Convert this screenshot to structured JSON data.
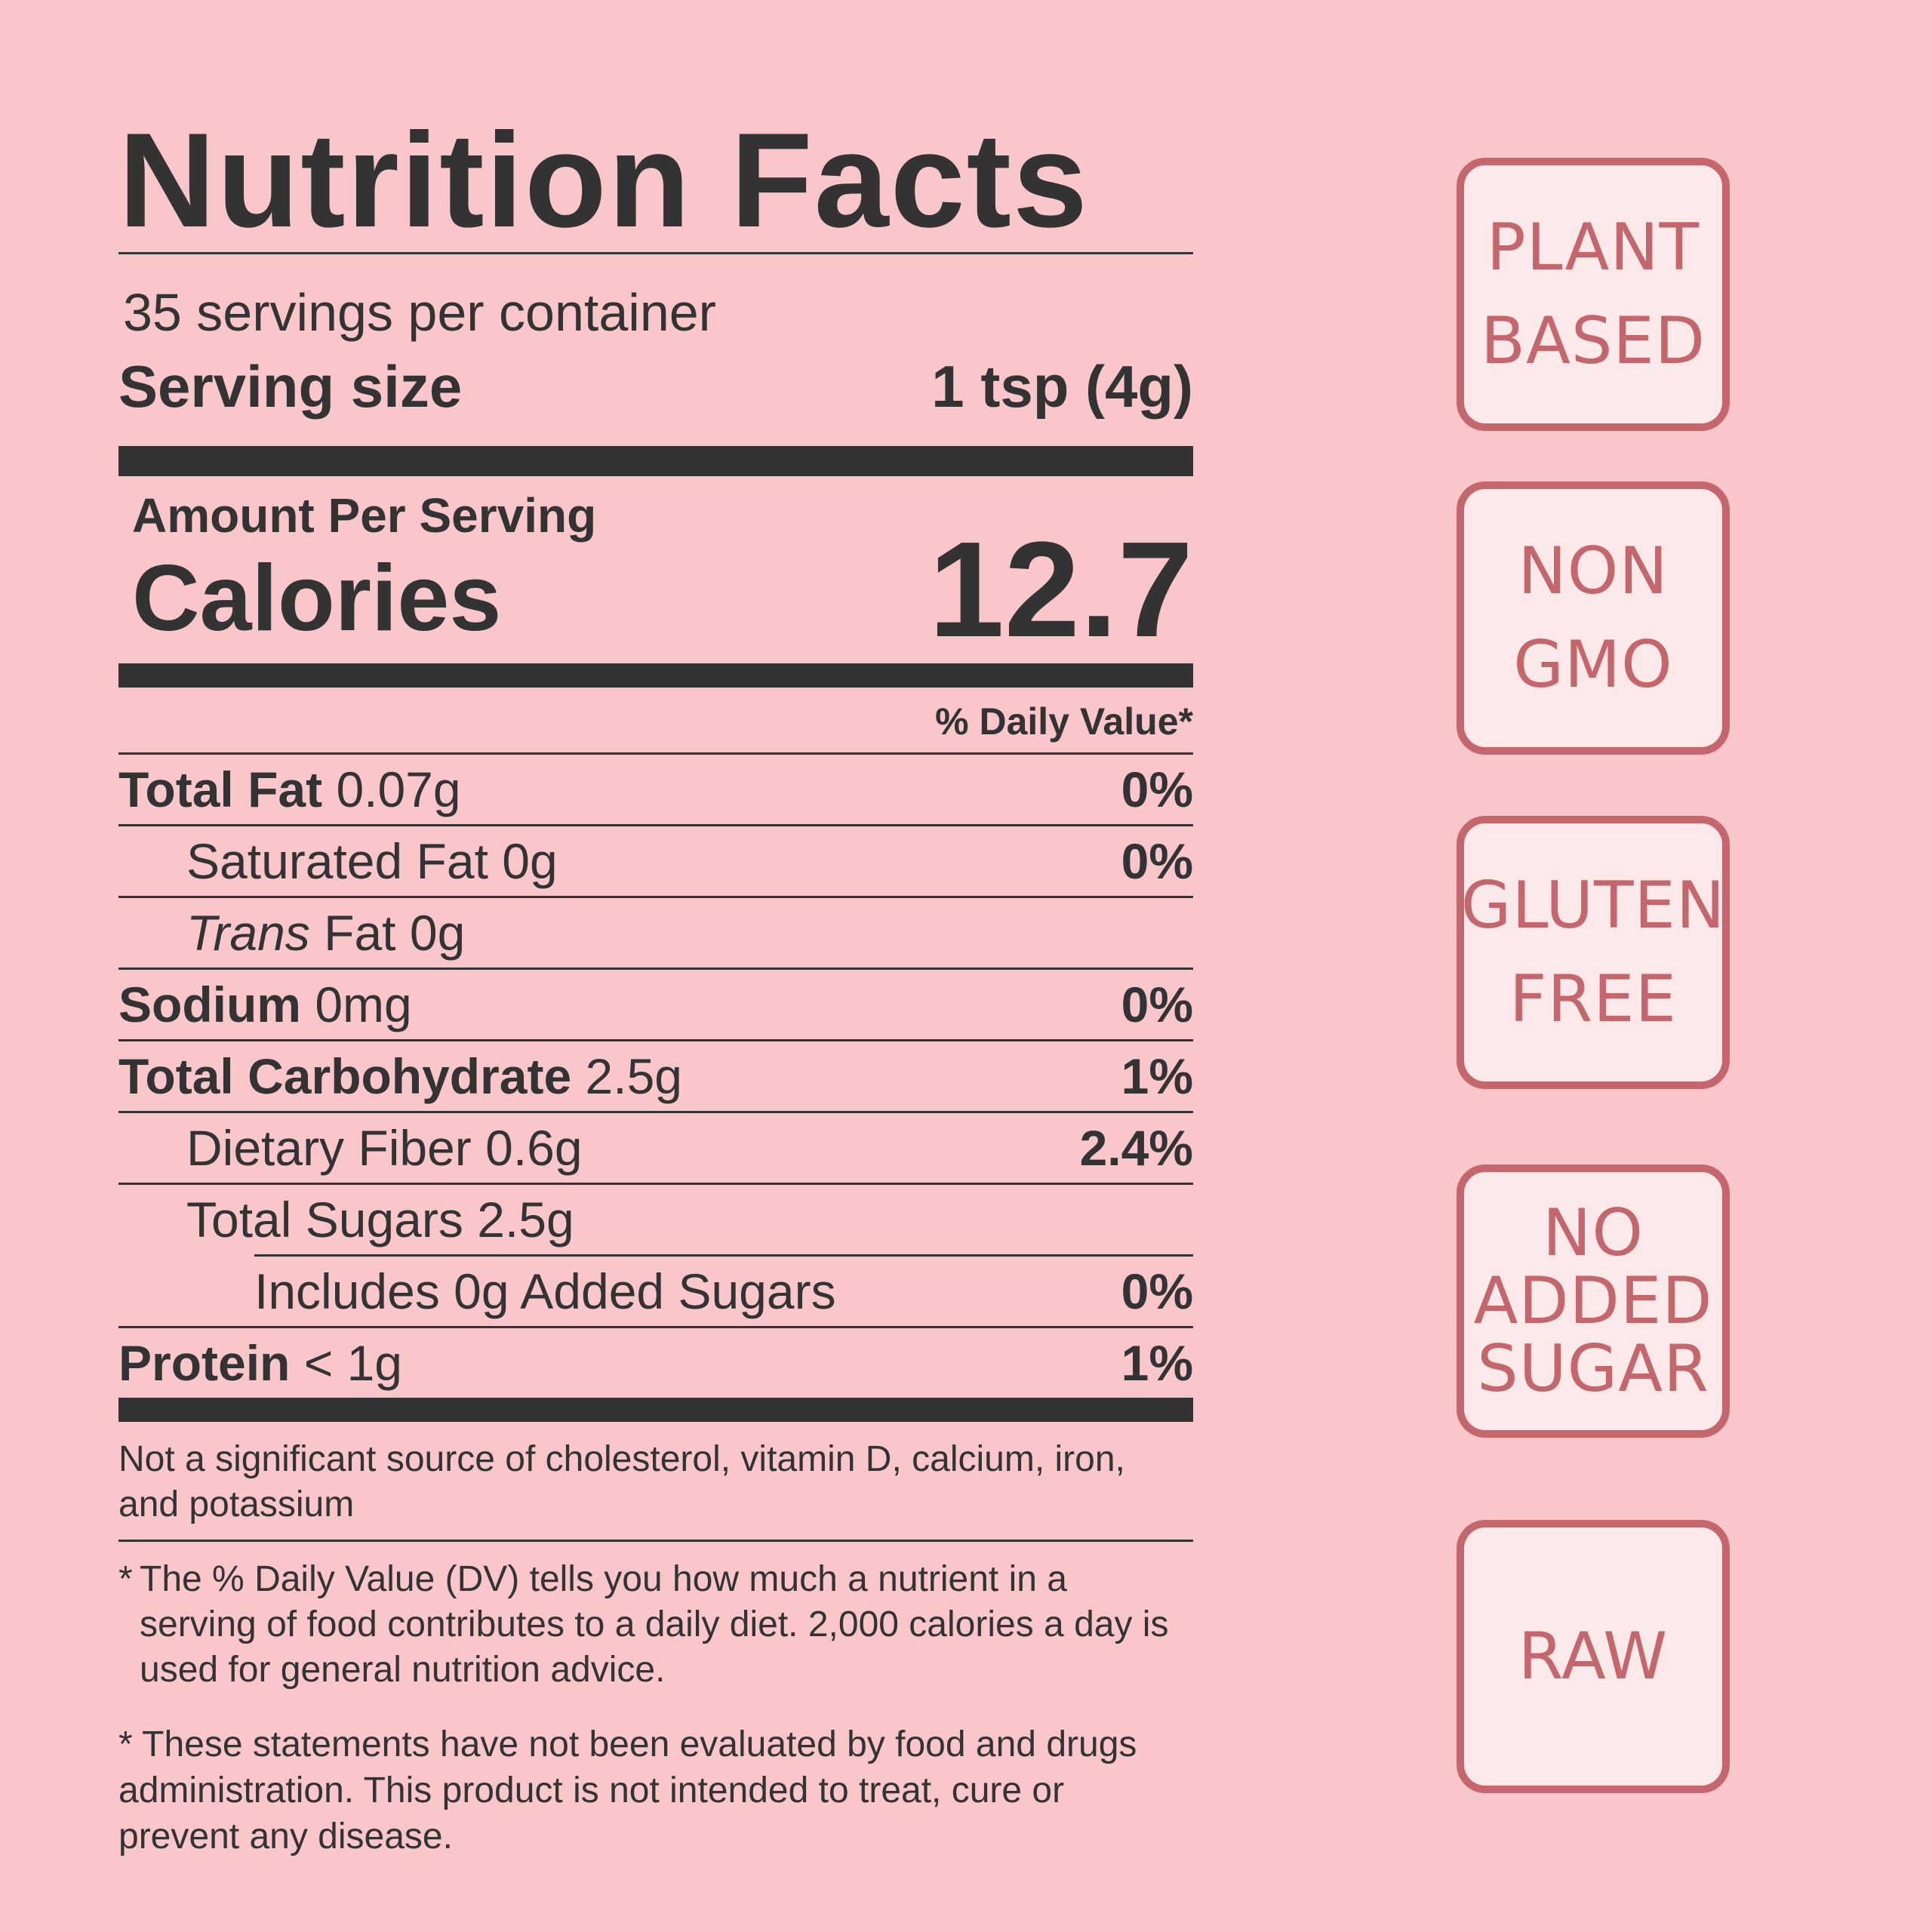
{
  "label": {
    "title": "Nutrition Facts",
    "servings_per_container": "35 servings per container",
    "serving_size_label": "Serving size",
    "serving_size_value": "1 tsp (4g)",
    "amount_per_serving": "Amount Per Serving",
    "calories_label": "Calories",
    "calories_value": "12.7",
    "daily_value_header": "% Daily Value*",
    "rows": [
      {
        "name": "Total Fat",
        "amount": "0.07g",
        "dv": "0%"
      },
      {
        "name": "Saturated Fat",
        "amount": "0g",
        "dv": "0%"
      },
      {
        "name": "Trans",
        "name_rest": "Fat",
        "amount": "0g",
        "dv": ""
      },
      {
        "name": "Sodium",
        "amount": "0mg",
        "dv": "0%"
      },
      {
        "name": "Total Carbohydrate",
        "amount": "2.5g",
        "dv": "1%"
      },
      {
        "name": "Dietary Fiber",
        "amount": "0.6g",
        "dv": "2.4%"
      },
      {
        "name": "Total Sugars",
        "amount": "2.5g",
        "dv": ""
      },
      {
        "name": "Includes 0g Added Sugars",
        "amount": "",
        "dv": "0%"
      },
      {
        "name": "Protein",
        "amount": "< 1g",
        "dv": "1%"
      }
    ],
    "not_significant": "Not a significant source of cholesterol, vitamin D, calcium, iron, and potassium",
    "dv_note_star": "*",
    "dv_note": "The % Daily Value (DV) tells you how much a nutrient in a serving of food contributes to a daily diet. 2,000 calories a day is used for general nutrition advice.",
    "disclaimer": "* These statements have not been evaluated by food and drugs administration. This product is not intended to treat, cure or prevent any disease."
  },
  "badges": [
    {
      "line1": "PLANT",
      "line2": "BASED"
    },
    {
      "line1": "NON",
      "line2": "GMO"
    },
    {
      "line1": "GLUTEN",
      "line2": "FREE"
    },
    {
      "line1": "NO",
      "line2": "ADDED",
      "line3": "SUGAR"
    },
    {
      "line1": "RAW"
    }
  ],
  "colors": {
    "background": "#f9c6c9",
    "text": "#333333",
    "badge_border": "#c4666b",
    "badge_fill": "#fce9ea"
  }
}
